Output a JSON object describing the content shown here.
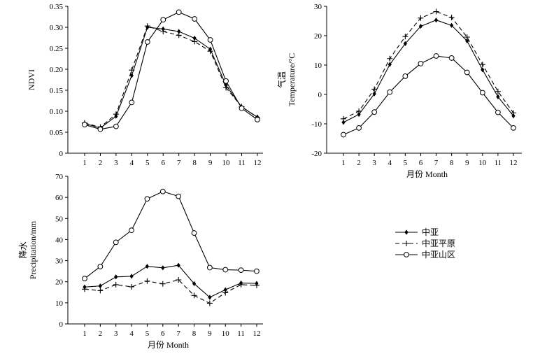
{
  "chart_data": [
    {
      "type": "line",
      "id": "ndvi",
      "categories": [
        "1",
        "2",
        "3",
        "4",
        "5",
        "6",
        "7",
        "8",
        "9",
        "10",
        "11",
        "12"
      ],
      "ylabel": "NDVI",
      "xlabel": "",
      "ylim": [
        0,
        0.35
      ],
      "yticks": [
        "0",
        "0.05",
        "0.10",
        "0.15",
        "0.20",
        "0.25",
        "0.30",
        "0.35"
      ],
      "series": [
        {
          "name": "中亚",
          "values": [
            0.071,
            0.06,
            0.088,
            0.185,
            0.3,
            0.296,
            0.29,
            0.274,
            0.248,
            0.162,
            0.11,
            0.086
          ]
        },
        {
          "name": "中亚平原",
          "values": [
            0.072,
            0.062,
            0.093,
            0.198,
            0.303,
            0.29,
            0.281,
            0.266,
            0.243,
            0.156,
            0.111,
            0.085
          ]
        },
        {
          "name": "中亚山区",
          "values": [
            0.068,
            0.057,
            0.064,
            0.121,
            0.265,
            0.318,
            0.336,
            0.32,
            0.27,
            0.172,
            0.107,
            0.08
          ]
        }
      ]
    },
    {
      "type": "line",
      "id": "temperature",
      "categories": [
        "1",
        "2",
        "3",
        "4",
        "5",
        "6",
        "7",
        "8",
        "9",
        "10",
        "11",
        "12"
      ],
      "ylabel_cn": "气温",
      "ylabel": "Temperature/°C",
      "xlabel": "月份 Month",
      "ylim": [
        -20,
        30
      ],
      "yticks": [
        "-20",
        "-10",
        "0",
        "10",
        "20",
        "30"
      ],
      "series": [
        {
          "name": "中亚",
          "values": [
            -9.5,
            -6.8,
            0.2,
            10.2,
            17.3,
            23.2,
            25.3,
            23.5,
            18.2,
            8.4,
            -0.8,
            -7.3
          ]
        },
        {
          "name": "中亚平原",
          "values": [
            -8.3,
            -5.7,
            1.8,
            12.2,
            19.7,
            26.0,
            28.2,
            26.2,
            19.5,
            10.2,
            1.0,
            -6.3
          ]
        },
        {
          "name": "中亚山区",
          "values": [
            -13.7,
            -11.4,
            -6.0,
            0.8,
            6.2,
            10.5,
            13.1,
            12.4,
            7.5,
            0.6,
            -6.1,
            -11.4
          ]
        }
      ]
    },
    {
      "type": "line",
      "id": "precipitation",
      "categories": [
        "1",
        "2",
        "3",
        "4",
        "5",
        "6",
        "7",
        "8",
        "9",
        "10",
        "11",
        "12"
      ],
      "ylabel_cn": "降水",
      "ylabel": "Precipitation/mm",
      "xlabel": "月份 Month",
      "ylim": [
        0,
        70
      ],
      "yticks": [
        "0",
        "10",
        "20",
        "30",
        "40",
        "50",
        "60",
        "70"
      ],
      "series": [
        {
          "name": "中亚",
          "values": [
            17.5,
            18.0,
            22.3,
            22.6,
            27.3,
            26.6,
            27.8,
            19.1,
            12.6,
            16.2,
            19.4,
            19.2
          ]
        },
        {
          "name": "中亚平原",
          "values": [
            16.5,
            15.8,
            18.6,
            17.6,
            20.3,
            19.0,
            20.9,
            13.5,
            9.8,
            14.8,
            18.6,
            18.3
          ]
        },
        {
          "name": "中亚山区",
          "values": [
            21.5,
            27.2,
            38.7,
            44.4,
            59.3,
            62.8,
            60.5,
            43.1,
            26.7,
            25.7,
            25.5,
            25.0
          ]
        }
      ]
    }
  ],
  "legend": {
    "position": "right of precipitation chart",
    "items": [
      {
        "label": "中亚",
        "style": "solid",
        "marker": "diamond"
      },
      {
        "label": "中亚平原",
        "style": "dashed",
        "marker": "plus"
      },
      {
        "label": "中亚山区",
        "style": "solid",
        "marker": "circle"
      }
    ]
  }
}
